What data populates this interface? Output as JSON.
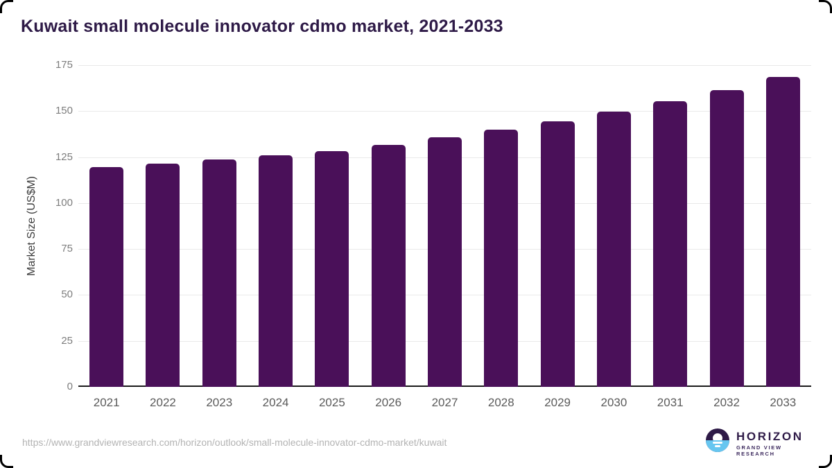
{
  "chart_data": {
    "type": "bar",
    "title": "Kuwait small molecule innovator cdmo market, 2021-2033",
    "xlabel": "",
    "ylabel": "Market Size (US$M)",
    "categories": [
      "2021",
      "2022",
      "2023",
      "2024",
      "2025",
      "2026",
      "2027",
      "2028",
      "2029",
      "2030",
      "2031",
      "2032",
      "2033"
    ],
    "values": [
      119.6,
      121.4,
      123.7,
      126.0,
      128.3,
      131.8,
      135.6,
      139.9,
      144.6,
      149.8,
      155.3,
      161.6,
      168.5
    ],
    "ylim": [
      0,
      175
    ],
    "yticks": [
      0,
      25,
      50,
      75,
      100,
      125,
      150,
      175
    ],
    "grid": true,
    "legend": false,
    "bar_color": "#4a1059"
  },
  "colors": {
    "title": "#2e1a47",
    "bar": "#4a1059",
    "gridline": "#e9e9e9",
    "axis_line": "#1a1a1a",
    "y_tick_label": "#7d7d7d",
    "x_tick_label": "#5a5a5a",
    "source_url": "#b3b3b3",
    "logo_purple": "#2e1a47",
    "logo_blue": "#67c6f0"
  },
  "footer": {
    "source_url": "https://www.grandviewresearch.com/horizon/outlook/small-molecule-innovator-cdmo-market/kuwait",
    "logo": {
      "brand": "HORIZON",
      "subbrand": "GRAND VIEW RESEARCH"
    }
  }
}
